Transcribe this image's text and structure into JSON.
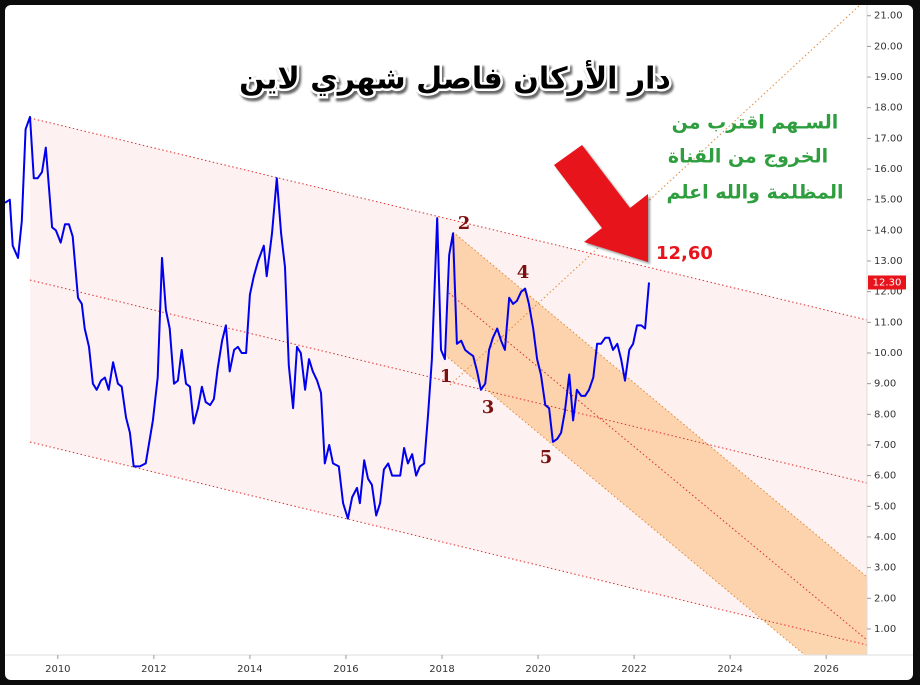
{
  "chart_data": {
    "type": "line",
    "title": "دار الأركان فاصل شهري لاين",
    "comment": [
      "السـهم اقترب من",
      "الخروج من القناة",
      "المظلمة والله اعلم"
    ],
    "target_label": "12,60",
    "annotations": [
      "1",
      "2",
      "3",
      "4",
      "5"
    ],
    "last_price_label": {
      "value": 12.3,
      "label": "12.30"
    },
    "xlim": [
      2008.9,
      2026.85
    ],
    "xticks": [
      2010,
      2012,
      2014,
      2016,
      2018,
      2020,
      2022,
      2024,
      2026
    ],
    "ylim": [
      0.15,
      21.35
    ],
    "yticks": [
      {
        "value": 1,
        "label": "1.00"
      },
      {
        "value": 2,
        "label": "2.00"
      },
      {
        "value": 3,
        "label": "3.00"
      },
      {
        "value": 4,
        "label": "4.00"
      },
      {
        "value": 5,
        "label": "5.00"
      },
      {
        "value": 6,
        "label": "6.00"
      },
      {
        "value": 7,
        "label": "7.00"
      },
      {
        "value": 8,
        "label": "8.00"
      },
      {
        "value": 9,
        "label": "9.00"
      },
      {
        "value": 10,
        "label": "10.00"
      },
      {
        "value": 11,
        "label": "11.00"
      },
      {
        "value": 12,
        "label": "12.00"
      },
      {
        "value": 13,
        "label": "13.00"
      },
      {
        "value": 14,
        "label": "14.00"
      },
      {
        "value": 15,
        "label": "15.00"
      },
      {
        "value": 16,
        "label": "16.00"
      },
      {
        "value": 17,
        "label": "17.00"
      },
      {
        "value": 18,
        "label": "18.00"
      },
      {
        "value": 19,
        "label": "19.00"
      },
      {
        "value": 20,
        "label": "20.00"
      },
      {
        "value": 21,
        "label": "21.00"
      }
    ],
    "x": [
      2008.9,
      2009.0,
      2009.06,
      2009.17,
      2009.25,
      2009.33,
      2009.42,
      2009.5,
      2009.58,
      2009.67,
      2009.75,
      2009.88,
      2009.96,
      2010.06,
      2010.15,
      2010.23,
      2010.31,
      2010.42,
      2010.5,
      2010.56,
      2010.65,
      2010.73,
      2010.81,
      2010.9,
      2010.98,
      2011.06,
      2011.15,
      2011.25,
      2011.33,
      2011.42,
      2011.5,
      2011.58,
      2011.71,
      2011.83,
      2011.98,
      2012.08,
      2012.17,
      2012.25,
      2012.33,
      2012.42,
      2012.5,
      2012.58,
      2012.67,
      2012.75,
      2012.83,
      2012.92,
      2013.0,
      2013.08,
      2013.17,
      2013.25,
      2013.33,
      2013.42,
      2013.5,
      2013.58,
      2013.67,
      2013.75,
      2013.83,
      2013.92,
      2014.0,
      2014.08,
      2014.17,
      2014.29,
      2014.35,
      2014.46,
      2014.56,
      2014.65,
      2014.73,
      2014.81,
      2014.9,
      2014.98,
      2015.06,
      2015.15,
      2015.23,
      2015.31,
      2015.4,
      2015.48,
      2015.56,
      2015.65,
      2015.73,
      2015.85,
      2015.94,
      2016.04,
      2016.13,
      2016.23,
      2016.29,
      2016.38,
      2016.46,
      2016.54,
      2016.63,
      2016.71,
      2016.79,
      2016.88,
      2016.96,
      2017.04,
      2017.13,
      2017.21,
      2017.29,
      2017.38,
      2017.46,
      2017.54,
      2017.63,
      2017.71,
      2017.79,
      2017.9,
      2017.98,
      2018.06,
      2018.15,
      2018.23,
      2018.31,
      2018.4,
      2018.48,
      2018.56,
      2018.65,
      2018.73,
      2018.81,
      2018.9,
      2018.98,
      2019.06,
      2019.15,
      2019.23,
      2019.31,
      2019.4,
      2019.48,
      2019.56,
      2019.65,
      2019.73,
      2019.81,
      2019.9,
      2019.98,
      2020.06,
      2020.15,
      2020.23,
      2020.31,
      2020.4,
      2020.48,
      2020.56,
      2020.65,
      2020.73,
      2020.81,
      2020.9,
      2020.98,
      2021.06,
      2021.15,
      2021.23,
      2021.31,
      2021.4,
      2021.48,
      2021.56,
      2021.65,
      2021.73,
      2021.81,
      2021.9,
      2021.98,
      2022.06,
      2022.15,
      2022.23,
      2022.31
    ],
    "series": [
      {
        "color": "#0000ee",
        "values": [
          14.9,
          15.0,
          13.5,
          13.1,
          14.3,
          17.3,
          17.7,
          15.7,
          15.7,
          15.9,
          16.7,
          14.1,
          14.0,
          13.6,
          14.2,
          14.2,
          13.8,
          11.8,
          11.6,
          10.8,
          10.2,
          9.0,
          8.8,
          9.1,
          9.2,
          8.8,
          9.7,
          9.0,
          8.9,
          7.9,
          7.4,
          6.3,
          6.3,
          6.4,
          7.8,
          9.2,
          13.1,
          11.4,
          10.8,
          9.0,
          9.1,
          10.1,
          9.0,
          8.9,
          7.7,
          8.2,
          8.9,
          8.4,
          8.3,
          8.5,
          9.5,
          10.4,
          10.9,
          9.4,
          10.1,
          10.2,
          10.0,
          10.0,
          11.9,
          12.5,
          13.0,
          13.5,
          12.5,
          13.9,
          15.7,
          13.9,
          12.8,
          9.6,
          8.2,
          10.2,
          10.0,
          8.8,
          9.8,
          9.4,
          9.1,
          8.7,
          6.4,
          7.0,
          6.4,
          6.3,
          5.1,
          4.6,
          5.3,
          5.6,
          5.1,
          6.5,
          5.9,
          5.7,
          4.7,
          5.1,
          6.2,
          6.4,
          6.0,
          6.0,
          6.0,
          6.9,
          6.4,
          6.7,
          6.0,
          6.3,
          6.4,
          8.0,
          9.8,
          14.4,
          10.1,
          9.8,
          13.2,
          13.9,
          10.3,
          10.4,
          10.1,
          10.0,
          9.9,
          9.4,
          8.8,
          9.0,
          10.1,
          10.5,
          10.8,
          10.4,
          10.1,
          11.8,
          11.6,
          11.7,
          12.0,
          12.1,
          11.6,
          10.8,
          9.8,
          9.3,
          8.3,
          8.2,
          7.1,
          7.2,
          7.4,
          8.1,
          9.3,
          7.8,
          8.8,
          8.6,
          8.6,
          8.8,
          9.2,
          10.3,
          10.3,
          10.5,
          10.5,
          10.1,
          10.3,
          9.8,
          9.1,
          10.1,
          10.3,
          10.9,
          10.9,
          10.8,
          12.3
        ]
      }
    ]
  }
}
